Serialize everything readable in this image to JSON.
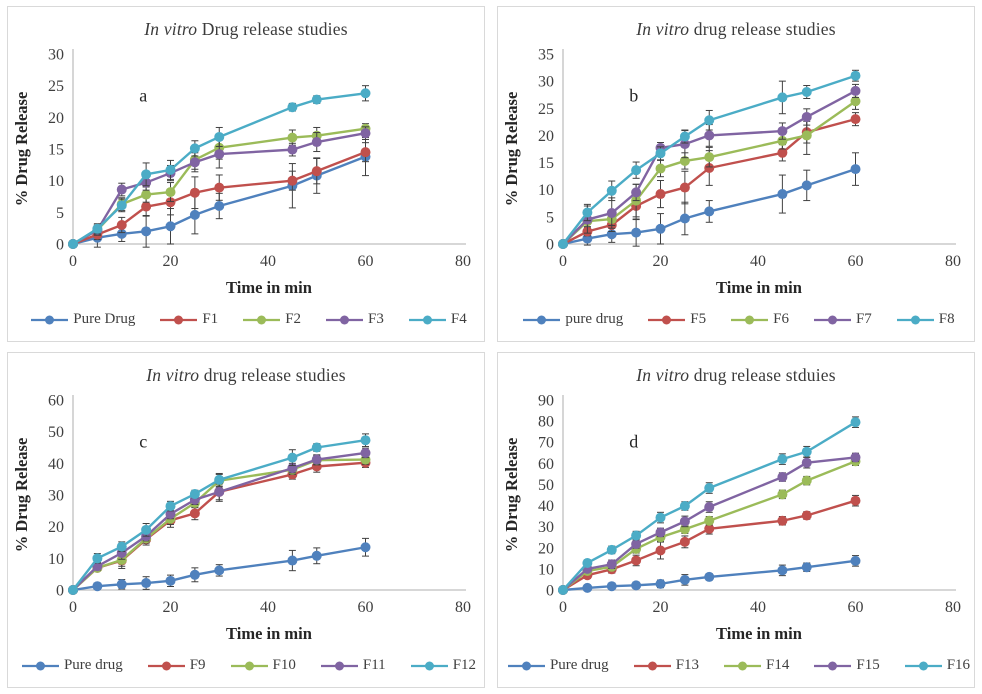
{
  "page": {
    "background": "#ffffff",
    "panel_border": "#d9d9d9"
  },
  "palette": {
    "blue": "#4F81BD",
    "red": "#C0504D",
    "green": "#9BBB59",
    "purple": "#8064A2",
    "cyan": "#4BACC6"
  },
  "chart_data": [
    {
      "type": "line",
      "panel_label": "a",
      "title": "In vitro Drug release studies",
      "title_italic": "In vitro",
      "title_rest": " Drug release studies",
      "xlabel": "Time in min",
      "ylabel": "% Drug Release",
      "grid": false,
      "legend_position": "bottom",
      "x": [
        0,
        5,
        10,
        15,
        20,
        25,
        30,
        45,
        50,
        60
      ],
      "xlim": [
        0,
        80
      ],
      "xticks": [
        0,
        20,
        40,
        60,
        80
      ],
      "ylim": [
        0,
        30
      ],
      "yticks": [
        0,
        5,
        10,
        15,
        20,
        25,
        30
      ],
      "series": [
        {
          "name": "Pure Drug",
          "color": "#4F81BD",
          "values": [
            0,
            1.0,
            1.6,
            2.0,
            2.8,
            4.6,
            6.0,
            9.2,
            10.8,
            13.8
          ],
          "errors": [
            0,
            1.5,
            1.2,
            2.5,
            2.8,
            3.0,
            2.0,
            3.5,
            2.8,
            3.0
          ]
        },
        {
          "name": "F1",
          "color": "#C0504D",
          "values": [
            0,
            1.5,
            3.0,
            5.9,
            6.6,
            8.1,
            8.9,
            10.0,
            11.5,
            14.5
          ],
          "errors": [
            0,
            0.8,
            1.2,
            1.5,
            2.0,
            2.5,
            2.0,
            1.5,
            2.0,
            1.5
          ]
        },
        {
          "name": "F2",
          "color": "#9BBB59",
          "values": [
            0,
            2.2,
            6.3,
            7.8,
            8.2,
            13.3,
            15.2,
            16.8,
            17.1,
            18.2
          ],
          "errors": [
            0,
            0.8,
            1.0,
            1.2,
            1.5,
            1.5,
            1.8,
            1.2,
            1.3,
            0.8
          ]
        },
        {
          "name": "F3",
          "color": "#8064A2",
          "values": [
            0,
            2.2,
            8.6,
            9.7,
            11.2,
            12.9,
            14.2,
            14.9,
            16.1,
            17.5
          ],
          "errors": [
            0,
            0.8,
            1.0,
            1.2,
            1.2,
            1.5,
            2.2,
            1.0,
            1.5,
            1.0
          ]
        },
        {
          "name": "F4",
          "color": "#4BACC6",
          "values": [
            0,
            2.4,
            6.1,
            11.0,
            11.7,
            15.1,
            16.9,
            21.6,
            22.8,
            23.8
          ],
          "errors": [
            0,
            0.8,
            1.0,
            1.8,
            1.5,
            1.2,
            1.5,
            0.6,
            0.6,
            1.2
          ]
        }
      ]
    },
    {
      "type": "line",
      "panel_label": "b",
      "title": "In vitro drug release studies",
      "title_italic": "In vitro",
      "title_rest": " drug release studies",
      "xlabel": "Time in min",
      "ylabel": "% Drug Release",
      "grid": false,
      "legend_position": "bottom",
      "x": [
        0,
        5,
        10,
        15,
        20,
        25,
        30,
        45,
        50,
        60
      ],
      "xlim": [
        0,
        80
      ],
      "xticks": [
        0,
        20,
        40,
        60,
        80
      ],
      "ylim": [
        0,
        35
      ],
      "yticks": [
        0,
        5,
        10,
        15,
        20,
        25,
        30,
        35
      ],
      "series": [
        {
          "name": "pure drug",
          "color": "#4F81BD",
          "values": [
            0,
            1.0,
            1.8,
            2.1,
            2.8,
            4.7,
            6.0,
            9.2,
            10.8,
            13.8
          ],
          "errors": [
            0,
            1.2,
            1.5,
            2.5,
            2.8,
            3.0,
            2.0,
            3.5,
            2.8,
            3.0
          ]
        },
        {
          "name": "F5",
          "color": "#C0504D",
          "values": [
            0,
            2.3,
            3.5,
            7.0,
            9.2,
            10.4,
            14.0,
            16.8,
            20.6,
            23.0
          ],
          "errors": [
            0,
            0.8,
            1.2,
            2.5,
            2.5,
            3.0,
            3.2,
            1.5,
            2.0,
            1.2
          ]
        },
        {
          "name": "F6",
          "color": "#9BBB59",
          "values": [
            0,
            4.2,
            4.6,
            8.0,
            13.9,
            15.3,
            16.0,
            19.0,
            20.0,
            26.3
          ],
          "errors": [
            0,
            1.0,
            1.2,
            3.0,
            1.5,
            1.5,
            1.8,
            1.5,
            3.5,
            1.5
          ]
        },
        {
          "name": "F7",
          "color": "#8064A2",
          "values": [
            0,
            4.5,
            5.7,
            9.5,
            17.7,
            18.4,
            20.0,
            20.8,
            23.4,
            28.2
          ],
          "errors": [
            0,
            2.5,
            2.8,
            1.5,
            1.0,
            2.5,
            2.0,
            1.5,
            1.5,
            1.2
          ]
        },
        {
          "name": "F8",
          "color": "#4BACC6",
          "values": [
            0,
            5.8,
            9.8,
            13.6,
            16.7,
            19.8,
            22.8,
            27.0,
            28.0,
            31.0
          ],
          "errors": [
            0,
            1.5,
            1.8,
            1.5,
            1.2,
            1.2,
            1.8,
            3.0,
            1.2,
            1.0
          ]
        }
      ]
    },
    {
      "type": "line",
      "panel_label": "c",
      "title": "In vitro drug release studies",
      "title_italic": "In vitro",
      "title_rest": " drug release studies",
      "xlabel": "Time in min",
      "ylabel": "% Drug Release",
      "grid": false,
      "legend_position": "bottom",
      "x": [
        0,
        5,
        10,
        15,
        20,
        25,
        30,
        45,
        50,
        60
      ],
      "xlim": [
        0,
        80
      ],
      "xticks": [
        0,
        20,
        40,
        60,
        80
      ],
      "ylim": [
        0,
        60
      ],
      "yticks": [
        0,
        10,
        20,
        30,
        40,
        50,
        60
      ],
      "series": [
        {
          "name": "Pure drug",
          "color": "#4F81BD",
          "values": [
            0,
            1.2,
            1.8,
            2.2,
            2.9,
            4.8,
            6.2,
            9.3,
            10.8,
            13.5
          ],
          "errors": [
            0,
            1.0,
            1.5,
            2.0,
            1.8,
            2.2,
            1.8,
            3.2,
            2.5,
            2.8
          ]
        },
        {
          "name": "F9",
          "color": "#C0504D",
          "values": [
            0,
            7.0,
            9.3,
            16.0,
            22.0,
            24.2,
            31.0,
            36.5,
            39.0,
            40.2
          ],
          "errors": [
            0,
            1.0,
            2.5,
            1.8,
            2.2,
            2.0,
            3.0,
            1.5,
            1.8,
            1.5
          ]
        },
        {
          "name": "F10",
          "color": "#9BBB59",
          "values": [
            0,
            7.0,
            9.5,
            16.3,
            22.5,
            27.5,
            34.5,
            38.0,
            41.0,
            41.2
          ],
          "errors": [
            0,
            1.0,
            2.0,
            1.5,
            1.8,
            1.5,
            2.0,
            1.5,
            1.5,
            1.5
          ]
        },
        {
          "name": "F11",
          "color": "#8064A2",
          "values": [
            0,
            7.5,
            11.7,
            17.0,
            24.0,
            28.5,
            31.0,
            38.5,
            41.2,
            43.3
          ],
          "errors": [
            0,
            1.2,
            2.0,
            1.5,
            1.5,
            1.5,
            2.5,
            1.5,
            1.5,
            1.5
          ]
        },
        {
          "name": "F12",
          "color": "#4BACC6",
          "values": [
            0,
            10.0,
            13.7,
            19.0,
            26.5,
            30.3,
            34.8,
            41.8,
            45.0,
            47.3
          ],
          "errors": [
            0,
            1.5,
            1.5,
            2.0,
            1.5,
            1.2,
            2.0,
            2.5,
            1.2,
            2.0
          ]
        }
      ]
    },
    {
      "type": "line",
      "panel_label": "d",
      "title": "In vitro drug release stduies",
      "title_italic": "In vitro",
      "title_rest": " drug release stduies",
      "xlabel": "Time in min",
      "ylabel": "% Drug Release",
      "grid": false,
      "legend_position": "bottom",
      "x": [
        0,
        5,
        10,
        15,
        20,
        25,
        30,
        45,
        50,
        60
      ],
      "xlim": [
        0,
        80
      ],
      "xticks": [
        0,
        20,
        40,
        60,
        80
      ],
      "ylim": [
        0,
        90
      ],
      "yticks": [
        0,
        10,
        20,
        30,
        40,
        50,
        60,
        70,
        80,
        90
      ],
      "series": [
        {
          "name": "Pure drug",
          "color": "#4F81BD",
          "values": [
            0,
            1.0,
            1.8,
            2.2,
            2.9,
            4.8,
            6.2,
            9.3,
            10.8,
            13.8
          ],
          "errors": [
            0,
            1.0,
            1.2,
            1.5,
            1.8,
            2.5,
            1.5,
            2.5,
            2.0,
            2.5
          ]
        },
        {
          "name": "F13",
          "color": "#C0504D",
          "values": [
            0,
            7.0,
            9.8,
            14.0,
            18.7,
            22.8,
            29.0,
            32.8,
            35.3,
            42.3
          ],
          "errors": [
            0,
            1.5,
            1.8,
            2.5,
            4.0,
            2.8,
            2.5,
            2.0,
            1.8,
            2.5
          ]
        },
        {
          "name": "F14",
          "color": "#9BBB59",
          "values": [
            0,
            9.0,
            11.0,
            19.5,
            25.0,
            28.8,
            32.8,
            45.3,
            51.8,
            61.0
          ],
          "errors": [
            0,
            1.5,
            1.8,
            2.0,
            2.0,
            2.0,
            2.0,
            2.0,
            2.0,
            2.0
          ]
        },
        {
          "name": "F15",
          "color": "#8064A2",
          "values": [
            0,
            10.0,
            12.2,
            21.8,
            27.3,
            32.5,
            39.3,
            53.5,
            60.3,
            62.8
          ],
          "errors": [
            0,
            1.5,
            2.0,
            2.0,
            2.0,
            2.5,
            2.5,
            2.0,
            2.5,
            2.0
          ]
        },
        {
          "name": "F16",
          "color": "#4BACC6",
          "values": [
            0,
            12.8,
            19.0,
            25.8,
            34.3,
            39.8,
            48.3,
            62.0,
            65.5,
            79.5
          ],
          "errors": [
            0,
            1.5,
            1.8,
            2.0,
            2.5,
            2.0,
            2.5,
            2.5,
            2.5,
            2.5
          ]
        }
      ]
    }
  ]
}
